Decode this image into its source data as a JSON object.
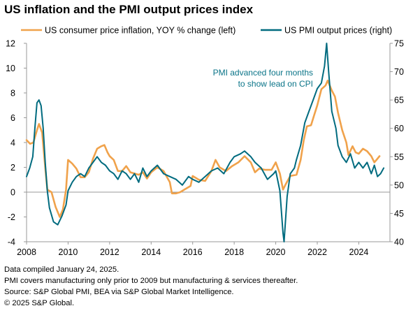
{
  "title": "US inflation and the PMI output prices index",
  "footnotes": [
    "Data compiled January 24, 2025.",
    "PMI covers manufacturing only prior to 2009 but manufacturing & services thereafter.",
    "Source: S&P Global PMI, BEA via S&P Global Market Intelligence.",
    "© 2025 S&P Global."
  ],
  "chart_data": {
    "type": "line",
    "title": "US inflation and the PMI output prices index",
    "xlabel": "",
    "ylabel_left": "",
    "ylabel_right": "",
    "x_ticks": [
      "2008",
      "2010",
      "2012",
      "2014",
      "2016",
      "2018",
      "2020",
      "2022",
      "2024"
    ],
    "xlim": [
      2008,
      2025.5
    ],
    "ylim_left": [
      -4,
      12
    ],
    "ylim_right": [
      40,
      75
    ],
    "y_ticks_left": [
      -4,
      -2,
      0,
      2,
      4,
      6,
      8,
      10,
      12
    ],
    "y_ticks_right": [
      40,
      45,
      50,
      55,
      60,
      65,
      70,
      75
    ],
    "legend_position": "top",
    "grid": false,
    "annotation": {
      "lines": [
        "PMI advanced four months",
        "to show lead on CPI"
      ],
      "x": 2021.1,
      "y_left": 9.6
    },
    "series": [
      {
        "name": "US consumer price inflation, YOY % change (left)",
        "axis": "left",
        "color": "#f0a24b",
        "points": [
          [
            2008.0,
            4.2
          ],
          [
            2008.17,
            3.9
          ],
          [
            2008.33,
            4.0
          ],
          [
            2008.5,
            5.0
          ],
          [
            2008.6,
            5.5
          ],
          [
            2008.75,
            4.8
          ],
          [
            2008.9,
            2.0
          ],
          [
            2009.0,
            0.2
          ],
          [
            2009.2,
            0.0
          ],
          [
            2009.4,
            -1.2
          ],
          [
            2009.6,
            -2.0
          ],
          [
            2009.75,
            -1.4
          ],
          [
            2009.9,
            0.2
          ],
          [
            2010.0,
            2.6
          ],
          [
            2010.2,
            2.3
          ],
          [
            2010.4,
            1.9
          ],
          [
            2010.6,
            1.2
          ],
          [
            2010.8,
            1.2
          ],
          [
            2011.0,
            1.6
          ],
          [
            2011.2,
            2.7
          ],
          [
            2011.4,
            3.5
          ],
          [
            2011.6,
            3.7
          ],
          [
            2011.75,
            3.8
          ],
          [
            2011.9,
            3.2
          ],
          [
            2012.0,
            2.9
          ],
          [
            2012.2,
            2.6
          ],
          [
            2012.4,
            1.7
          ],
          [
            2012.6,
            1.7
          ],
          [
            2012.8,
            2.1
          ],
          [
            2013.0,
            1.6
          ],
          [
            2013.2,
            1.5
          ],
          [
            2013.4,
            1.4
          ],
          [
            2013.6,
            1.6
          ],
          [
            2013.8,
            1.1
          ],
          [
            2014.0,
            1.6
          ],
          [
            2014.3,
            2.0
          ],
          [
            2014.6,
            1.7
          ],
          [
            2014.9,
            0.8
          ],
          [
            2015.0,
            -0.1
          ],
          [
            2015.2,
            -0.1
          ],
          [
            2015.4,
            0.0
          ],
          [
            2015.6,
            0.2
          ],
          [
            2015.9,
            0.5
          ],
          [
            2016.0,
            1.3
          ],
          [
            2016.3,
            1.0
          ],
          [
            2016.6,
            0.9
          ],
          [
            2016.9,
            1.7
          ],
          [
            2017.1,
            2.6
          ],
          [
            2017.3,
            2.0
          ],
          [
            2017.6,
            1.7
          ],
          [
            2017.9,
            2.1
          ],
          [
            2018.2,
            2.4
          ],
          [
            2018.5,
            2.9
          ],
          [
            2018.8,
            2.4
          ],
          [
            2019.0,
            1.6
          ],
          [
            2019.2,
            1.9
          ],
          [
            2019.5,
            1.8
          ],
          [
            2019.8,
            1.8
          ],
          [
            2020.0,
            2.4
          ],
          [
            2020.2,
            1.5
          ],
          [
            2020.35,
            0.2
          ],
          [
            2020.5,
            0.7
          ],
          [
            2020.7,
            1.3
          ],
          [
            2021.0,
            1.4
          ],
          [
            2021.2,
            2.6
          ],
          [
            2021.35,
            4.2
          ],
          [
            2021.5,
            5.3
          ],
          [
            2021.7,
            5.4
          ],
          [
            2021.85,
            6.2
          ],
          [
            2022.0,
            7.0
          ],
          [
            2022.2,
            8.3
          ],
          [
            2022.4,
            8.6
          ],
          [
            2022.5,
            9.0
          ],
          [
            2022.7,
            8.2
          ],
          [
            2022.85,
            7.7
          ],
          [
            2023.0,
            6.4
          ],
          [
            2023.2,
            5.0
          ],
          [
            2023.4,
            4.0
          ],
          [
            2023.5,
            3.0
          ],
          [
            2023.7,
            3.7
          ],
          [
            2023.85,
            3.2
          ],
          [
            2024.0,
            3.1
          ],
          [
            2024.2,
            3.5
          ],
          [
            2024.4,
            3.3
          ],
          [
            2024.6,
            2.9
          ],
          [
            2024.75,
            2.4
          ],
          [
            2024.9,
            2.7
          ],
          [
            2025.0,
            2.9
          ]
        ]
      },
      {
        "name": "US PMI output prices (right)",
        "axis": "right",
        "color": "#006b7f",
        "points": [
          [
            2008.0,
            51.5
          ],
          [
            2008.15,
            53.0
          ],
          [
            2008.3,
            55.0
          ],
          [
            2008.4,
            60.0
          ],
          [
            2008.5,
            64.5
          ],
          [
            2008.6,
            65.0
          ],
          [
            2008.7,
            64.0
          ],
          [
            2008.8,
            60.0
          ],
          [
            2008.9,
            54.0
          ],
          [
            2009.0,
            49.0
          ],
          [
            2009.1,
            46.0
          ],
          [
            2009.3,
            43.5
          ],
          [
            2009.5,
            43.0
          ],
          [
            2009.7,
            44.5
          ],
          [
            2009.9,
            46.5
          ],
          [
            2010.0,
            49.0
          ],
          [
            2010.2,
            50.5
          ],
          [
            2010.4,
            51.5
          ],
          [
            2010.6,
            52.0
          ],
          [
            2010.8,
            51.5
          ],
          [
            2011.0,
            53.0
          ],
          [
            2011.2,
            54.0
          ],
          [
            2011.4,
            55.0
          ],
          [
            2011.6,
            54.0
          ],
          [
            2011.8,
            53.5
          ],
          [
            2012.0,
            52.5
          ],
          [
            2012.2,
            52.0
          ],
          [
            2012.4,
            51.0
          ],
          [
            2012.6,
            52.5
          ],
          [
            2012.8,
            52.0
          ],
          [
            2013.0,
            51.0
          ],
          [
            2013.2,
            52.0
          ],
          [
            2013.4,
            50.5
          ],
          [
            2013.6,
            53.0
          ],
          [
            2013.8,
            51.5
          ],
          [
            2014.0,
            52.5
          ],
          [
            2014.3,
            53.5
          ],
          [
            2014.6,
            52.0
          ],
          [
            2014.9,
            51.5
          ],
          [
            2015.2,
            51.0
          ],
          [
            2015.5,
            50.0
          ],
          [
            2015.8,
            51.5
          ],
          [
            2016.0,
            51.0
          ],
          [
            2016.3,
            50.5
          ],
          [
            2016.6,
            51.5
          ],
          [
            2016.9,
            52.5
          ],
          [
            2017.2,
            53.0
          ],
          [
            2017.5,
            52.0
          ],
          [
            2017.8,
            54.0
          ],
          [
            2018.0,
            55.0
          ],
          [
            2018.3,
            55.5
          ],
          [
            2018.5,
            56.0
          ],
          [
            2018.8,
            55.0
          ],
          [
            2019.0,
            54.0
          ],
          [
            2019.3,
            53.0
          ],
          [
            2019.6,
            51.0
          ],
          [
            2019.9,
            52.0
          ],
          [
            2020.0,
            52.5
          ],
          [
            2020.2,
            49.0
          ],
          [
            2020.35,
            41.5
          ],
          [
            2020.4,
            40.0
          ],
          [
            2020.55,
            48.0
          ],
          [
            2020.7,
            52.0
          ],
          [
            2020.9,
            53.0
          ],
          [
            2021.0,
            54.5
          ],
          [
            2021.2,
            57.0
          ],
          [
            2021.4,
            61.0
          ],
          [
            2021.6,
            63.0
          ],
          [
            2021.8,
            65.0
          ],
          [
            2022.0,
            67.0
          ],
          [
            2022.2,
            68.0
          ],
          [
            2022.35,
            71.0
          ],
          [
            2022.45,
            75.0
          ],
          [
            2022.55,
            70.0
          ],
          [
            2022.7,
            63.0
          ],
          [
            2022.9,
            60.0
          ],
          [
            2023.0,
            57.0
          ],
          [
            2023.2,
            55.0
          ],
          [
            2023.4,
            54.0
          ],
          [
            2023.6,
            55.5
          ],
          [
            2023.8,
            53.0
          ],
          [
            2024.0,
            54.0
          ],
          [
            2024.2,
            53.0
          ],
          [
            2024.4,
            54.0
          ],
          [
            2024.6,
            52.0
          ],
          [
            2024.75,
            53.5
          ],
          [
            2024.9,
            51.5
          ],
          [
            2025.05,
            52.0
          ],
          [
            2025.2,
            53.0
          ]
        ]
      }
    ]
  }
}
